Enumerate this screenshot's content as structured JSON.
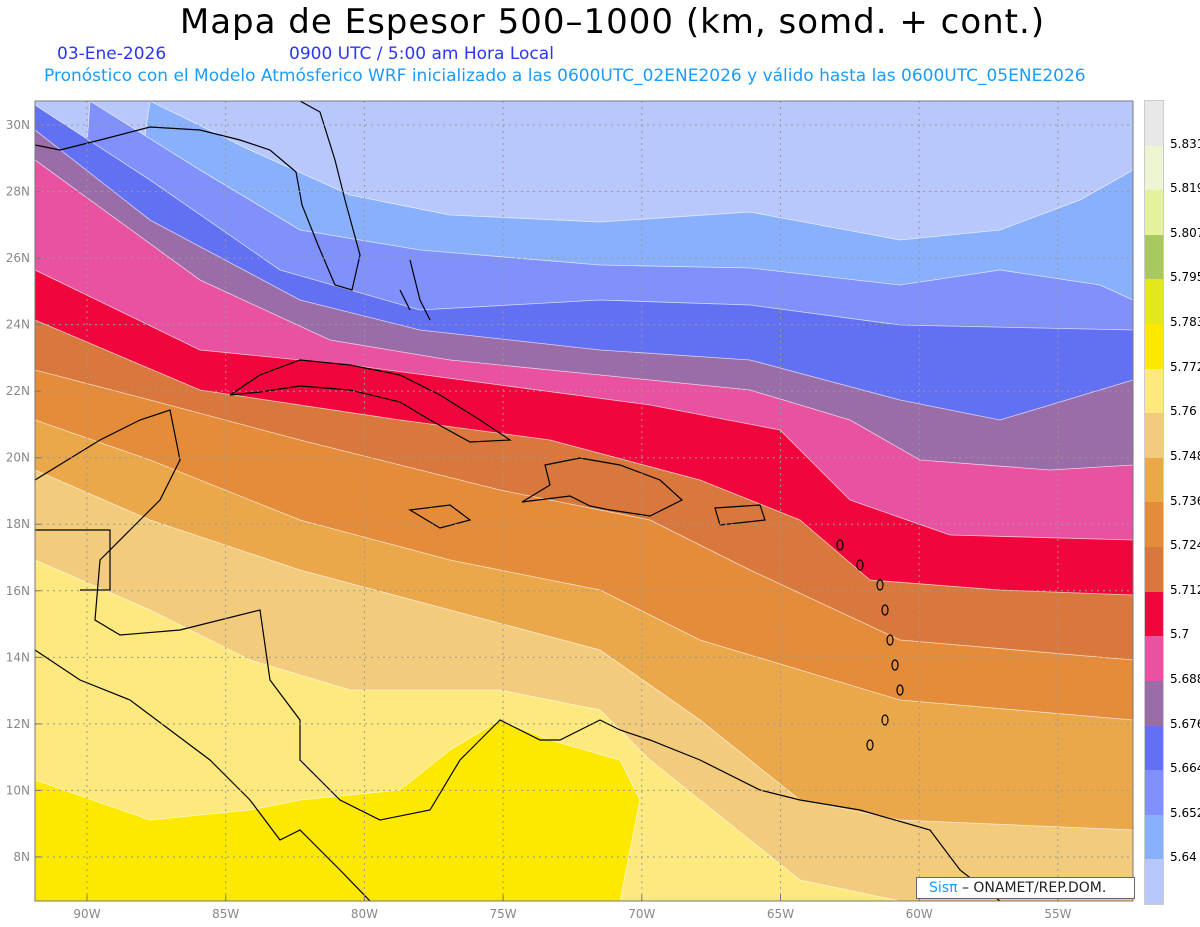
{
  "title": "Mapa de Espesor 500–1000 (km, somd. + cont.)",
  "date": "03-Ene-2026",
  "time": "0900 UTC / 5:00 am Hora Local",
  "model_info": "Pronóstico con el Modelo Atmósferico WRF inicializado a las 0600UTC_02ENE2026 y válido hasta las  0600UTC_05ENE2026",
  "credit": {
    "logo": "Sisπ",
    "text": " – ONAMET/REP.DOM."
  },
  "lat_ticks": [
    "30N",
    "28N",
    "26N",
    "24N",
    "22N",
    "20N",
    "18N",
    "16N",
    "14N",
    "12N",
    "10N",
    "8N"
  ],
  "lon_ticks": [
    "90W",
    "85W",
    "80W",
    "75W",
    "70W",
    "65W",
    "60W",
    "55W"
  ],
  "colorbar": {
    "colors": [
      "#e8e8e8",
      "#eef5d2",
      "#e4f29c",
      "#a8c860",
      "#e2e81c",
      "#fde800",
      "#fde97e",
      "#f2cc7c",
      "#eba84a",
      "#e48c3a",
      "#d8783c",
      "#f0063c",
      "#e852a0",
      "#9a6ca8",
      "#6270f4",
      "#8090fc",
      "#88b0fc",
      "#b8c8fc"
    ],
    "labels": [
      "5.831",
      "5.819",
      "5.807",
      "5.795",
      "5.783",
      "5.772",
      "5.76",
      "5.748",
      "5.736",
      "5.724",
      "5.712",
      "5.7",
      "5.688",
      "5.676",
      "5.664",
      "5.652",
      "5.64"
    ]
  }
}
